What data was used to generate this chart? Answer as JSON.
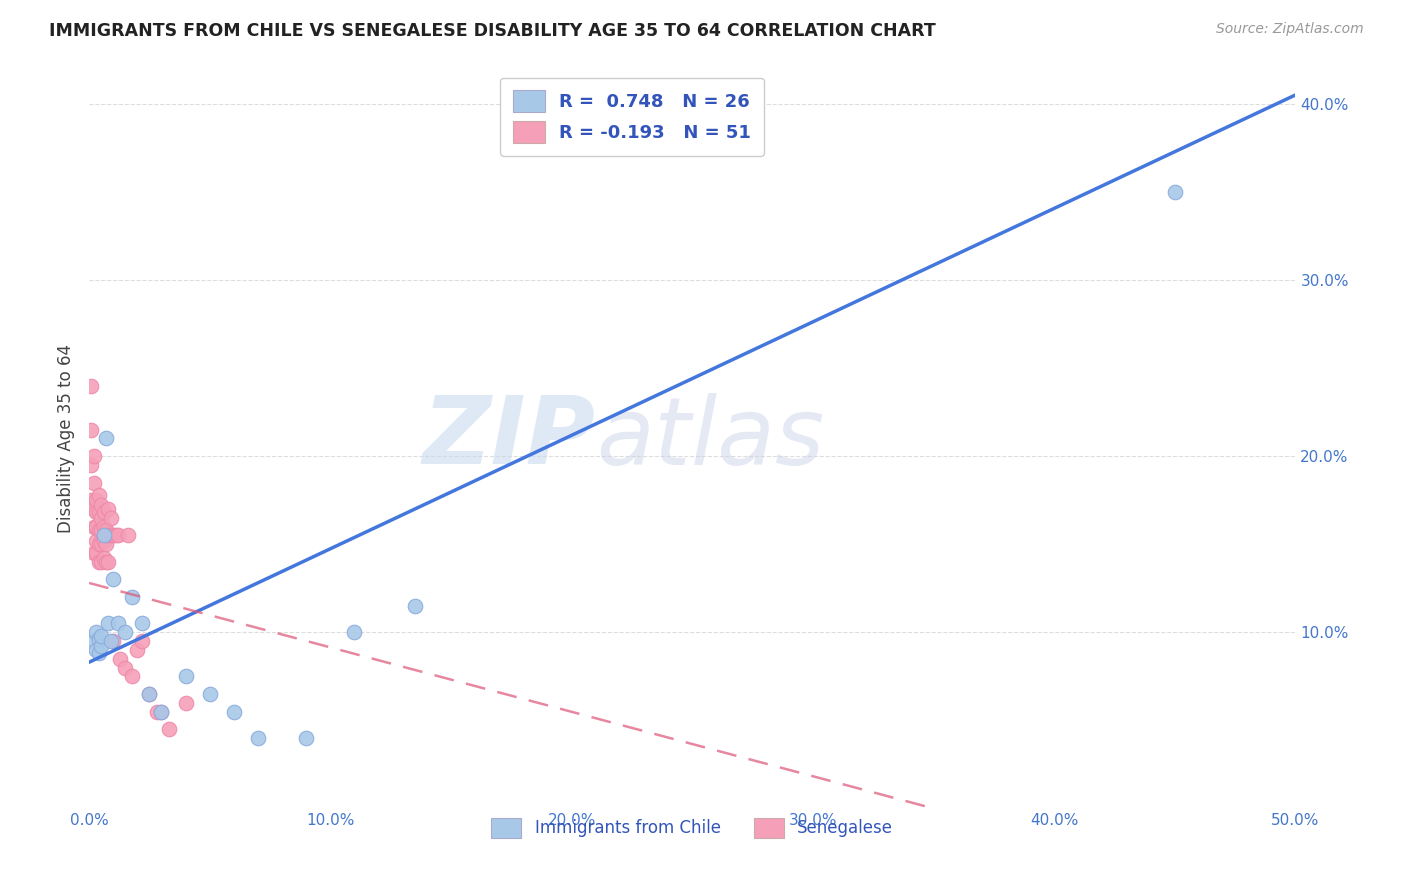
{
  "title": "IMMIGRANTS FROM CHILE VS SENEGALESE DISABILITY AGE 35 TO 64 CORRELATION CHART",
  "source": "Source: ZipAtlas.com",
  "ylabel": "Disability Age 35 to 64",
  "xlim": [
    0.0,
    0.5
  ],
  "ylim": [
    0.0,
    0.42
  ],
  "xticks": [
    0.0,
    0.1,
    0.2,
    0.3,
    0.4,
    0.5
  ],
  "yticks": [
    0.1,
    0.2,
    0.3,
    0.4
  ],
  "xtick_labels": [
    "0.0%",
    "10.0%",
    "20.0%",
    "30.0%",
    "40.0%",
    "50.0%"
  ],
  "ytick_labels": [
    "10.0%",
    "20.0%",
    "30.0%",
    "40.0%"
  ],
  "chile_color": "#a8c8e8",
  "senegal_color": "#f5a0b8",
  "chile_line_color": "#4477dd",
  "senegal_line_color": "#dd5577",
  "watermark_zip": "ZIP",
  "watermark_atlas": "atlas",
  "legend_chile_label": "Immigrants from Chile",
  "legend_senegal_label": "Senegalese",
  "R_chile": "0.748",
  "N_chile": "26",
  "R_senegal": "-0.193",
  "N_senegal": "51",
  "chile_line_x": [
    0.0,
    0.5
  ],
  "chile_line_y": [
    0.083,
    0.405
  ],
  "senegal_line_x": [
    0.0,
    0.35
  ],
  "senegal_line_y": [
    0.128,
    0.0
  ],
  "chile_x": [
    0.002,
    0.003,
    0.003,
    0.004,
    0.004,
    0.005,
    0.005,
    0.006,
    0.007,
    0.008,
    0.009,
    0.01,
    0.012,
    0.015,
    0.018,
    0.022,
    0.025,
    0.03,
    0.04,
    0.05,
    0.06,
    0.07,
    0.09,
    0.11,
    0.135,
    0.45
  ],
  "chile_y": [
    0.095,
    0.09,
    0.1,
    0.088,
    0.096,
    0.092,
    0.098,
    0.155,
    0.21,
    0.105,
    0.095,
    0.13,
    0.105,
    0.1,
    0.12,
    0.105,
    0.065,
    0.055,
    0.075,
    0.065,
    0.055,
    0.04,
    0.04,
    0.1,
    0.115,
    0.35
  ],
  "senegal_x": [
    0.001,
    0.001,
    0.001,
    0.001,
    0.002,
    0.002,
    0.002,
    0.002,
    0.002,
    0.003,
    0.003,
    0.003,
    0.003,
    0.003,
    0.004,
    0.004,
    0.004,
    0.004,
    0.004,
    0.005,
    0.005,
    0.005,
    0.005,
    0.005,
    0.006,
    0.006,
    0.006,
    0.006,
    0.007,
    0.007,
    0.007,
    0.008,
    0.008,
    0.008,
    0.009,
    0.009,
    0.01,
    0.01,
    0.011,
    0.012,
    0.013,
    0.015,
    0.016,
    0.018,
    0.02,
    0.022,
    0.025,
    0.028,
    0.03,
    0.033,
    0.04
  ],
  "senegal_y": [
    0.24,
    0.215,
    0.195,
    0.175,
    0.2,
    0.185,
    0.17,
    0.16,
    0.145,
    0.175,
    0.168,
    0.16,
    0.152,
    0.145,
    0.178,
    0.168,
    0.158,
    0.15,
    0.14,
    0.172,
    0.165,
    0.158,
    0.15,
    0.14,
    0.168,
    0.16,
    0.152,
    0.142,
    0.158,
    0.15,
    0.14,
    0.17,
    0.155,
    0.14,
    0.155,
    0.165,
    0.155,
    0.095,
    0.155,
    0.155,
    0.085,
    0.08,
    0.155,
    0.075,
    0.09,
    0.095,
    0.065,
    0.055,
    0.055,
    0.045,
    0.06
  ]
}
